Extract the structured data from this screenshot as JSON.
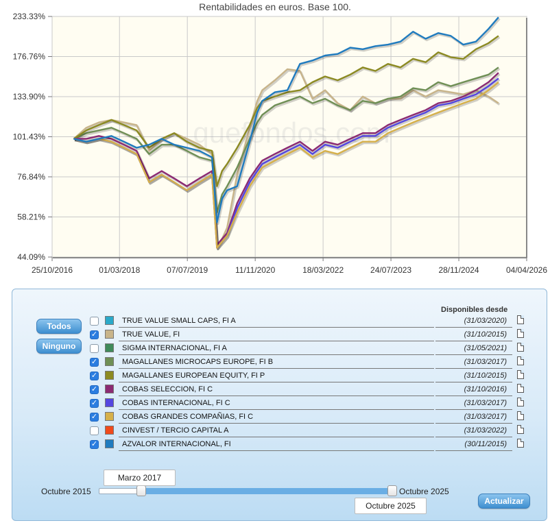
{
  "chart_data": {
    "type": "line",
    "title": "Rentabilidades en euros. Base 100.",
    "watermark": "quefondos.com",
    "y_ticks": [
      "233.33%",
      "176.76%",
      "133.90%",
      "101.43%",
      "76.84%",
      "58.21%",
      "44.09%"
    ],
    "y_tick_values": [
      233.33,
      176.76,
      133.9,
      101.43,
      76.84,
      58.21,
      44.09
    ],
    "y_scale": "log",
    "x_ticks": [
      "25/10/2016",
      "01/03/2018",
      "07/07/2019",
      "11/11/2020",
      "18/03/2022",
      "24/07/2023",
      "28/11/2024",
      "04/04/2026"
    ],
    "x_tick_values": [
      2016.82,
      2018.16,
      2019.51,
      2020.86,
      2022.21,
      2023.56,
      2024.91,
      2026.26
    ],
    "x": [
      2017.25,
      2017.5,
      2017.75,
      2018.0,
      2018.25,
      2018.5,
      2018.75,
      2019.0,
      2019.25,
      2019.5,
      2019.75,
      2020.0,
      2020.1,
      2020.2,
      2020.3,
      2020.5,
      2020.75,
      2020.9,
      2021.0,
      2021.25,
      2021.5,
      2021.75,
      2022.0,
      2022.25,
      2022.5,
      2022.75,
      2023.0,
      2023.25,
      2023.5,
      2023.75,
      2024.0,
      2024.25,
      2024.5,
      2024.75,
      2025.0,
      2025.25,
      2025.5,
      2025.7
    ],
    "series": [
      {
        "name": "TRUE VALUE, FI",
        "color": "#c8b48a",
        "values": [
          100,
          108,
          112,
          114,
          112,
          110,
          92,
          100,
          104,
          100,
          96,
          90,
          47,
          50,
          54,
          78,
          108,
          130,
          140,
          150,
          162,
          160,
          132,
          140,
          128,
          122,
          134,
          128,
          132,
          132,
          140,
          134,
          140,
          138,
          136,
          140,
          134,
          128
        ]
      },
      {
        "name": "MAGALLANES MICROCAPS EUROPE, FI B",
        "color": "#6f8f55",
        "values": [
          100,
          104,
          106,
          108,
          104,
          100,
          90,
          96,
          96,
          92,
          88,
          86,
          60,
          68,
          72,
          82,
          100,
          112,
          118,
          126,
          130,
          134,
          128,
          132,
          126,
          122,
          130,
          128,
          132,
          134,
          142,
          140,
          148,
          144,
          148,
          152,
          156,
          164
        ]
      },
      {
        "name": "MAGALLANES EUROPEAN EQUITY, FI P",
        "color": "#8c8a22",
        "values": [
          100,
          106,
          110,
          114,
          110,
          106,
          94,
          100,
          104,
          98,
          94,
          92,
          72,
          80,
          84,
          94,
          110,
          124,
          130,
          134,
          138,
          140,
          148,
          154,
          150,
          156,
          164,
          160,
          168,
          164,
          174,
          170,
          182,
          176,
          174,
          186,
          194,
          204
        ]
      },
      {
        "name": "COBAS SELECCION, FI C",
        "color": "#8b2a73",
        "values": [
          100,
          100,
          102,
          100,
          96,
          92,
          76,
          80,
          76,
          72,
          76,
          80,
          48,
          50,
          52,
          64,
          76,
          82,
          86,
          90,
          94,
          98,
          92,
          98,
          96,
          100,
          104,
          104,
          110,
          114,
          118,
          122,
          128,
          130,
          134,
          140,
          148,
          158
        ]
      },
      {
        "name": "COBAS INTERNACIONAL, FI C",
        "color": "#5446e0",
        "values": [
          100,
          98,
          100,
          98,
          94,
          90,
          74,
          78,
          74,
          70,
          74,
          78,
          47,
          49,
          51,
          62,
          74,
          80,
          84,
          88,
          92,
          96,
          90,
          96,
          94,
          98,
          102,
          102,
          108,
          112,
          116,
          120,
          126,
          128,
          132,
          136,
          144,
          152
        ]
      },
      {
        "name": "COBAS GRANDES COMPAÑIAS, FI C",
        "color": "#d6b04a",
        "values": [
          100,
          98,
          100,
          98,
          94,
          90,
          74,
          78,
          74,
          70,
          74,
          78,
          47,
          49,
          51,
          60,
          72,
          78,
          82,
          86,
          90,
          94,
          88,
          92,
          90,
          94,
          98,
          98,
          104,
          108,
          112,
          116,
          120,
          124,
          128,
          132,
          140,
          148
        ]
      },
      {
        "name": "AZVALOR INTERNACIONAL, FI",
        "color": "#1f7bbf",
        "values": [
          100,
          98,
          100,
          102,
          98,
          94,
          96,
          100,
          96,
          94,
          92,
          88,
          56,
          66,
          70,
          72,
          98,
          120,
          130,
          138,
          140,
          168,
          172,
          178,
          180,
          188,
          186,
          190,
          192,
          196,
          210,
          200,
          208,
          204,
          192,
          196,
          214,
          232
        ]
      }
    ]
  },
  "selection": {
    "todos_label": "Todos",
    "ninguno_label": "Ninguno",
    "available_header": "Disponibles desde",
    "funds": [
      {
        "name": "TRUE VALUE SMALL CAPS, FI A",
        "date": "(31/03/2020)",
        "color": "#2aa9c9",
        "checked": false
      },
      {
        "name": "TRUE VALUE, FI",
        "date": "(31/10/2015)",
        "color": "#c8b48a",
        "checked": true
      },
      {
        "name": "SIGMA INTERNACIONAL, FI A",
        "date": "(31/05/2021)",
        "color": "#3f8a5a",
        "checked": false
      },
      {
        "name": "MAGALLANES MICROCAPS EUROPE, FI B",
        "date": "(31/03/2017)",
        "color": "#6f8f55",
        "checked": true
      },
      {
        "name": "MAGALLANES EUROPEAN EQUITY, FI P",
        "date": "(31/10/2015)",
        "color": "#8c8a22",
        "checked": true
      },
      {
        "name": "COBAS SELECCION, FI C",
        "date": "(31/10/2016)",
        "color": "#8b2a73",
        "checked": true
      },
      {
        "name": "COBAS INTERNACIONAL, FI C",
        "date": "(31/03/2017)",
        "color": "#5446e0",
        "checked": true
      },
      {
        "name": "COBAS GRANDES COMPAÑIAS, FI C",
        "date": "(31/03/2017)",
        "color": "#d6b04a",
        "checked": true
      },
      {
        "name": "CINVEST / TERCIO CAPITAL A",
        "date": "(31/03/2022)",
        "color": "#f04a1c",
        "checked": false
      },
      {
        "name": "AZVALOR INTERNACIONAL, FI",
        "date": "(30/11/2015)",
        "color": "#1f7bbf",
        "checked": true
      }
    ]
  },
  "range": {
    "min_label": "Octubre 2015",
    "max_label": "Octubre 2025",
    "from_label": "Marzo 2017",
    "to_label": "Octubre 2025",
    "from_fraction": 0.145,
    "to_fraction": 1.0
  },
  "update_label": "Actualizar"
}
